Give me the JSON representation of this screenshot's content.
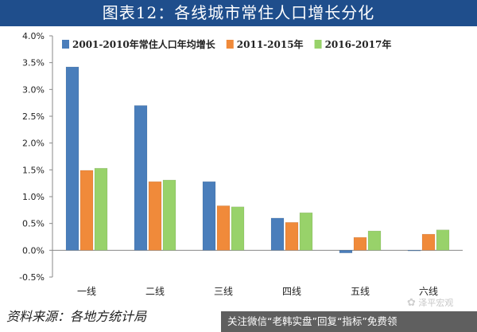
{
  "title": "图表12：各线城市常住人口增长分化",
  "source": "资料来源：各地方统计局",
  "watermark": "泽平宏观",
  "wechat_bar": "关注微信“老韩实盘”回复“指标”免费领",
  "chart_data": {
    "type": "bar",
    "categories": [
      "一线",
      "二线",
      "三线",
      "四线",
      "五线",
      "六线"
    ],
    "series": [
      {
        "name": "2001-2010年常住人口年均增长",
        "color": "#4a7ebb",
        "values": [
          0.0342,
          0.027,
          0.0128,
          0.006,
          -0.0005,
          -0.0001
        ]
      },
      {
        "name": "2011-2015年",
        "color": "#f08a3a",
        "values": [
          0.0149,
          0.0128,
          0.0083,
          0.0052,
          0.0024,
          0.003
        ]
      },
      {
        "name": "2016-2017年",
        "color": "#98d26a",
        "values": [
          0.0153,
          0.0131,
          0.0081,
          0.007,
          0.0036,
          0.0038
        ]
      }
    ],
    "ylim": [
      -0.005,
      0.04
    ],
    "yticks": [
      -0.005,
      0.0,
      0.005,
      0.01,
      0.015,
      0.02,
      0.025,
      0.03,
      0.035,
      0.04
    ],
    "ytick_labels": [
      "-0.5%",
      "0.0%",
      "0.5%",
      "1.0%",
      "1.5%",
      "2.0%",
      "2.5%",
      "3.0%",
      "3.5%",
      "4.0%"
    ],
    "grid": false,
    "legend": "top"
  }
}
